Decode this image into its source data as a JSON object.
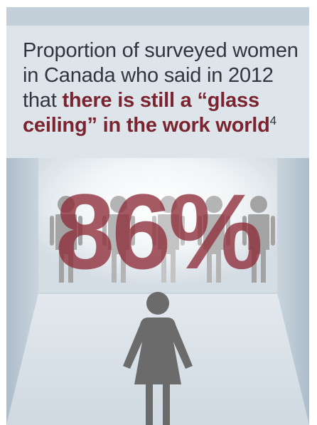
{
  "headline": {
    "lead": "Proportion of surveyed women in Canada who said in 2012 that ",
    "emphasis": "there is still a “glass ceiling” in the work world",
    "footnote": "4"
  },
  "stat": {
    "percent": "86%"
  },
  "icons": {
    "background_figures": [
      "man-icon",
      "man-icon",
      "man-icon",
      "man-icon",
      "man-icon"
    ],
    "foreground_figure": "woman-icon"
  },
  "colors": {
    "card": "#dde4ea",
    "emphasis": "#7b2430",
    "percent": "#8d2c38",
    "figure": "#6b6b6b"
  }
}
